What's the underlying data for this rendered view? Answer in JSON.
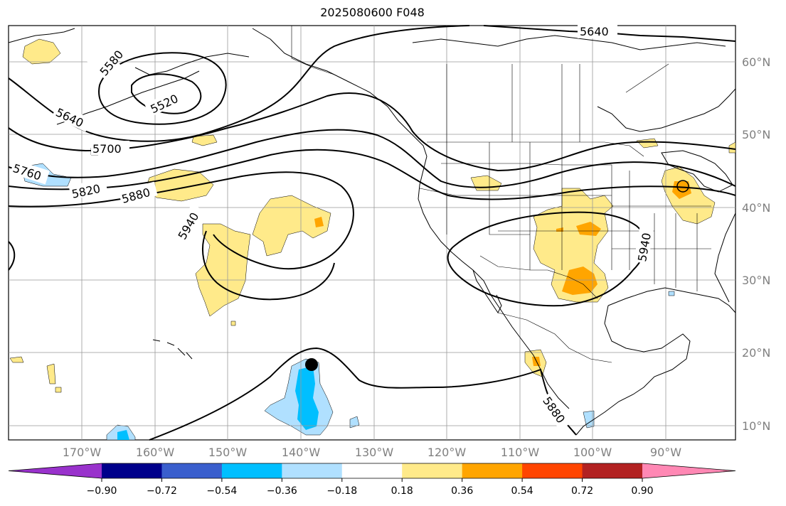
{
  "title": "2025080600 F048",
  "lat_ticks": [
    "60°N",
    "50°N",
    "40°N",
    "30°N",
    "20°N",
    "10°N"
  ],
  "lon_ticks": [
    "170°W",
    "160°W",
    "150°W",
    "140°W",
    "130°W",
    "120°W",
    "110°W",
    "100°W",
    "90°W"
  ],
  "contour_labels": [
    "5640",
    "5580",
    "5520",
    "5640",
    "5700",
    "5760",
    "5820",
    "5880",
    "5940",
    "5940",
    "5880"
  ],
  "colorbar": {
    "ticks": [
      "−0.90",
      "−0.72",
      "−0.54",
      "−0.36",
      "−0.18",
      "0.18",
      "0.36",
      "0.54",
      "0.72",
      "0.90"
    ],
    "colors": [
      "#9932cc",
      "#00008b",
      "#3a5fcd",
      "#00bfff",
      "#b0e0ff",
      "#ffffff",
      "#ffea8a",
      "#ffa500",
      "#ff4500",
      "#b22222",
      "#ff88b4"
    ]
  },
  "marker": "storm-center"
}
